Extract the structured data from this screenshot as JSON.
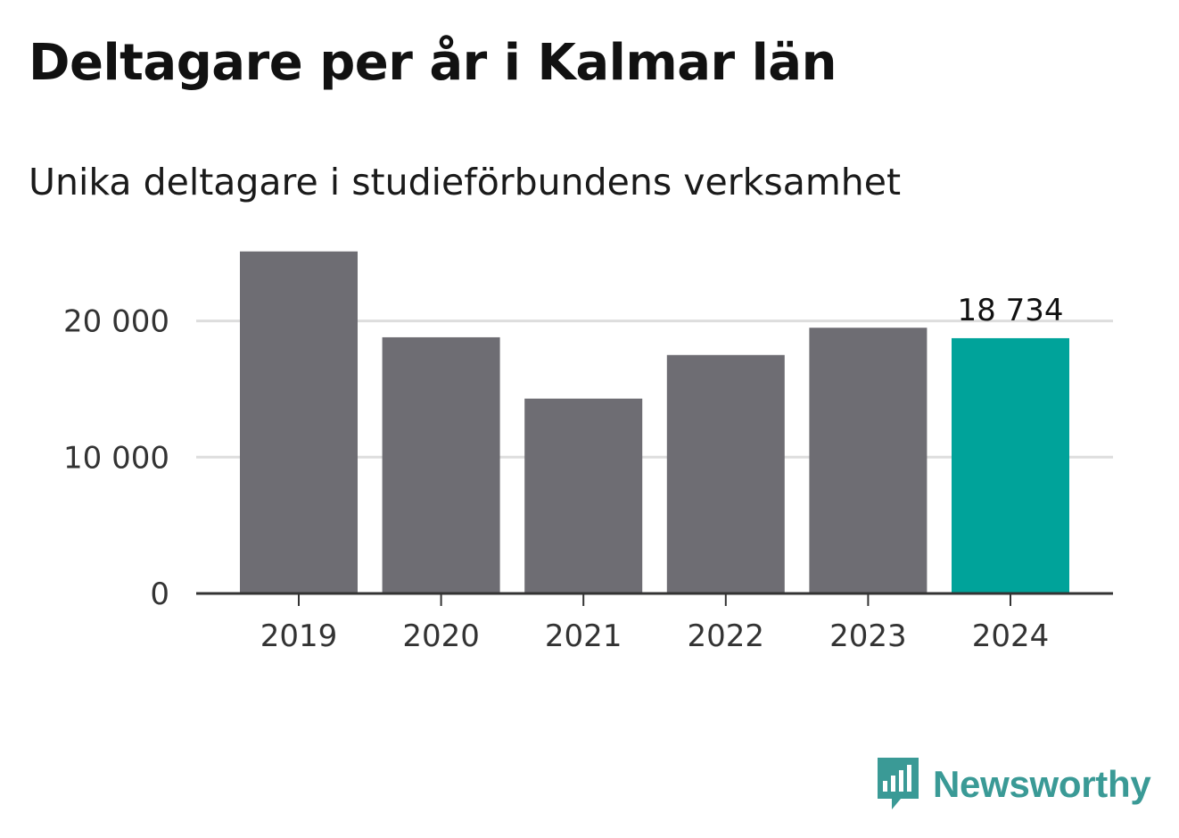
{
  "title": "Deltagare per år i Kalmar län",
  "subtitle": "Unika deltagare i studieförbundens verksamhet",
  "brand": {
    "name": "Newsworthy",
    "icon": "newsworthy-logo-icon",
    "color": "#3a9a96"
  },
  "colors": {
    "bar": "#6e6d73",
    "highlight": "#00a39a",
    "grid": "#dddddd",
    "axis": "#333333"
  },
  "chart_data": {
    "type": "bar",
    "categories": [
      "2019",
      "2020",
      "2021",
      "2022",
      "2023",
      "2024"
    ],
    "values": [
      25100,
      18800,
      14300,
      17500,
      19500,
      18734
    ],
    "highlight_index": 5,
    "data_labels": {
      "5": "18 734"
    },
    "yticks": [
      0,
      10000,
      20000
    ],
    "ytick_labels": [
      "0",
      "10 000",
      "20 000"
    ],
    "ylim": [
      0,
      26000
    ],
    "grid": true,
    "xlabel": "",
    "ylabel": ""
  }
}
